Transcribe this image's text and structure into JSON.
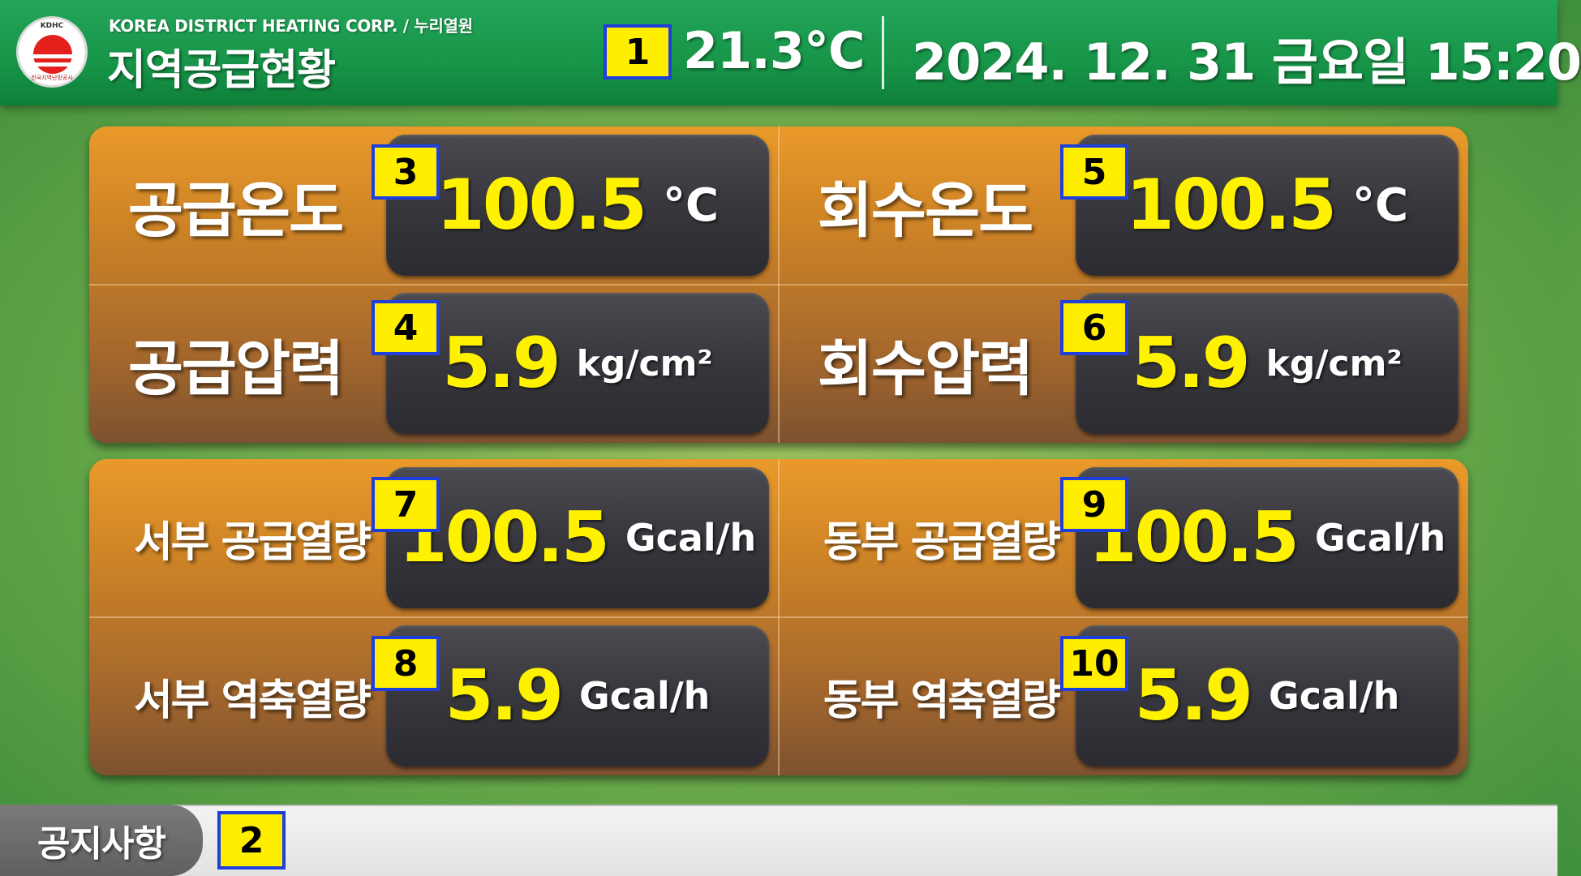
{
  "header": {
    "logo": {
      "top_text": "KDHC",
      "bottom_text": "한국지역난방공사",
      "icon": "kdhc-sun-logo"
    },
    "org_name": "KOREA DISTRICT HEATING CORP. / 누리열원",
    "title": "지역공급현황",
    "temperature": "21.3°C",
    "datetime": "2024. 12. 31  금요일  15:20"
  },
  "markers": [
    "1",
    "2",
    "3",
    "4",
    "5",
    "6",
    "7",
    "8",
    "9",
    "10"
  ],
  "panels": {
    "top": {
      "supply_temp": {
        "label": "공급온도",
        "value": "100.5",
        "unit": "°C"
      },
      "return_temp": {
        "label": "회수온도",
        "value": "100.5",
        "unit": "°C"
      },
      "supply_pressure": {
        "label": "공급압력",
        "value": "5.9",
        "unit": "kg/cm²"
      },
      "return_pressure": {
        "label": "회수압력",
        "value": "5.9",
        "unit": "kg/cm²"
      }
    },
    "bottom": {
      "west_supply_heat": {
        "label": "서부 공급열량",
        "value": "100.5",
        "unit": "Gcal/h"
      },
      "east_supply_heat": {
        "label": "동부 공급열량",
        "value": "100.5",
        "unit": "Gcal/h"
      },
      "west_return_heat": {
        "label": "서부 역축열량",
        "value": "5.9",
        "unit": "Gcal/h"
      },
      "east_return_heat": {
        "label": "동부 역축열량",
        "value": "5.9",
        "unit": "Gcal/h"
      }
    }
  },
  "notice": {
    "tab_label": "공지사항",
    "content": ""
  },
  "colors": {
    "header_green": "#179548",
    "panel_orange": "#e8952a",
    "value_yellow": "#fff200",
    "marker_yellow": "#ffee00",
    "marker_border": "#1e3fdc"
  }
}
